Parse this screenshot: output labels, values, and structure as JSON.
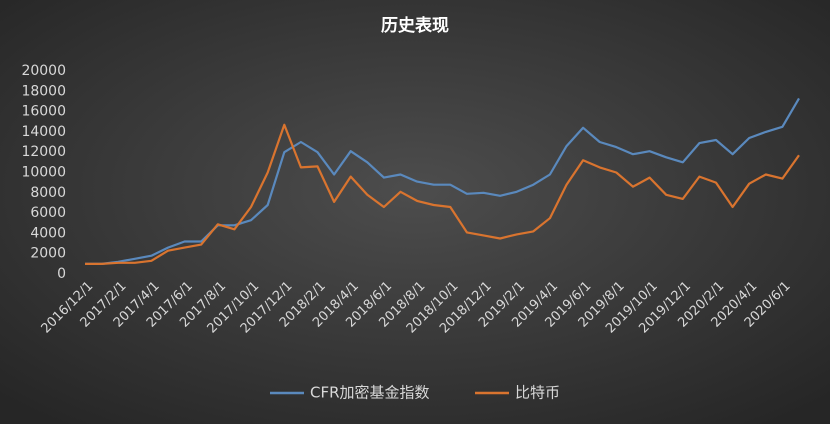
{
  "chart_data": {
    "type": "line",
    "title": "历史表现",
    "categories": [
      "2016/12/1",
      null,
      "2017/2/1",
      null,
      "2017/4/1",
      null,
      "2017/6/1",
      null,
      "2017/8/1",
      null,
      "2017/10/1",
      null,
      "2017/12/1",
      null,
      "2018/2/1",
      null,
      "2018/4/1",
      null,
      "2018/6/1",
      null,
      "2018/8/1",
      null,
      "2018/10/1",
      null,
      "2018/12/1",
      null,
      "2019/2/1",
      null,
      "2019/4/1",
      null,
      "2019/6/1",
      null,
      "2019/8/1",
      null,
      "2019/10/1",
      null,
      "2019/12/1",
      null,
      "2020/2/1",
      null,
      "2020/4/1",
      null,
      "2020/6/1",
      null
    ],
    "series": [
      {
        "name": "CFR加密基金指数",
        "color": "#5a89bd",
        "values": [
          1000,
          1000,
          1200,
          1500,
          1800,
          2600,
          3200,
          3200,
          4800,
          4800,
          5300,
          6800,
          12000,
          13000,
          12000,
          9800,
          12100,
          11000,
          9500,
          9800,
          9100,
          8800,
          8800,
          7900,
          8000,
          7700,
          8100,
          8800,
          9800,
          12600,
          14400,
          13000,
          12500,
          11800,
          12100,
          11500,
          11000,
          12900,
          13200,
          11800,
          13400,
          14000,
          14500,
          17300
        ]
      },
      {
        "name": "比特币",
        "color": "#d9742f",
        "values": [
          1000,
          1000,
          1100,
          1100,
          1300,
          2300,
          2600,
          2900,
          4900,
          4400,
          6600,
          10000,
          14700,
          10500,
          10600,
          7100,
          9600,
          7800,
          6600,
          8100,
          7200,
          6800,
          6600,
          4100,
          3800,
          3500,
          3900,
          4200,
          5500,
          8800,
          11200,
          10500,
          10000,
          8600,
          9500,
          7800,
          7400,
          9600,
          9000,
          6600,
          8900,
          9800,
          9400,
          11700
        ]
      }
    ],
    "ylim": [
      0,
      20000
    ],
    "yticks": [
      0,
      2000,
      4000,
      6000,
      8000,
      10000,
      12000,
      14000,
      16000,
      18000,
      20000
    ],
    "legend": "bottom"
  }
}
